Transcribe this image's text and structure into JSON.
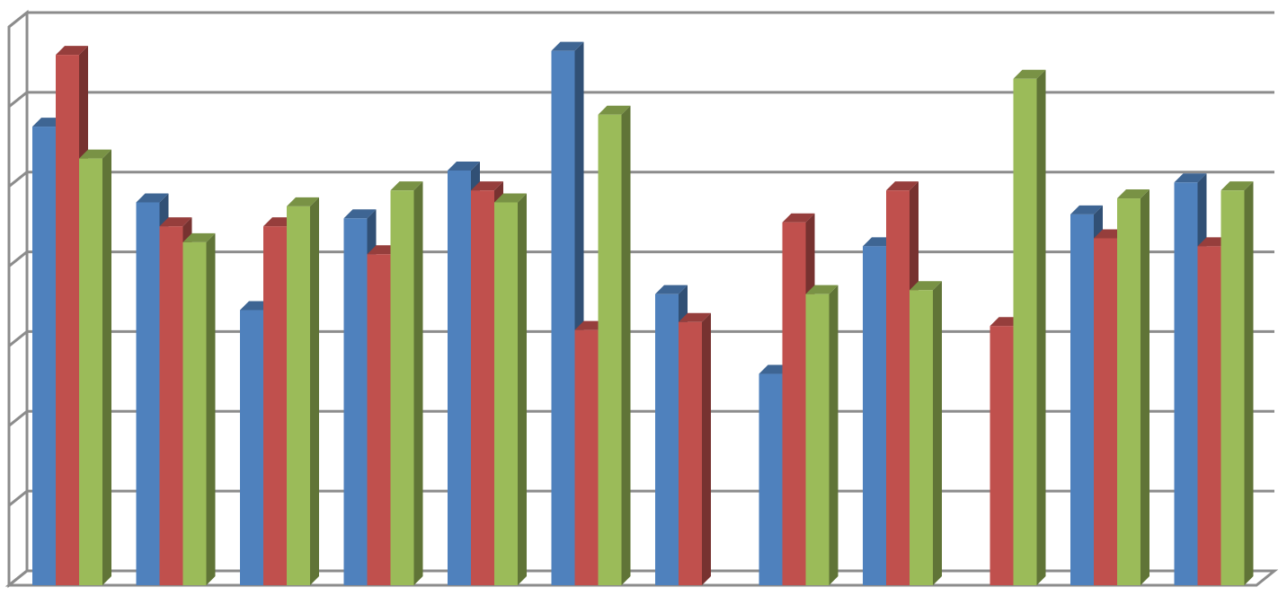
{
  "chart_data": {
    "type": "bar",
    "style": "3d-clustered-column",
    "categories": [
      "",
      "",
      "",
      "",
      "",
      "",
      "",
      "",
      "",
      "",
      "",
      ""
    ],
    "ylim": [
      0,
      7
    ],
    "grid": true,
    "legend": "none",
    "series": [
      {
        "color": "#4F81BD",
        "values": [
          5.75,
          4.8,
          3.45,
          4.6,
          5.2,
          6.7,
          3.65,
          2.65,
          4.25,
          null,
          4.65,
          5.05
        ]
      },
      {
        "color": "#C0504D",
        "values": [
          6.65,
          4.5,
          4.5,
          4.15,
          4.95,
          3.2,
          3.3,
          4.55,
          4.95,
          3.25,
          4.35,
          4.25
        ]
      },
      {
        "color": "#9BBB59",
        "values": [
          5.35,
          4.3,
          4.75,
          4.95,
          4.8,
          5.9,
          null,
          3.65,
          3.7,
          6.35,
          4.85,
          4.95
        ]
      }
    ]
  }
}
